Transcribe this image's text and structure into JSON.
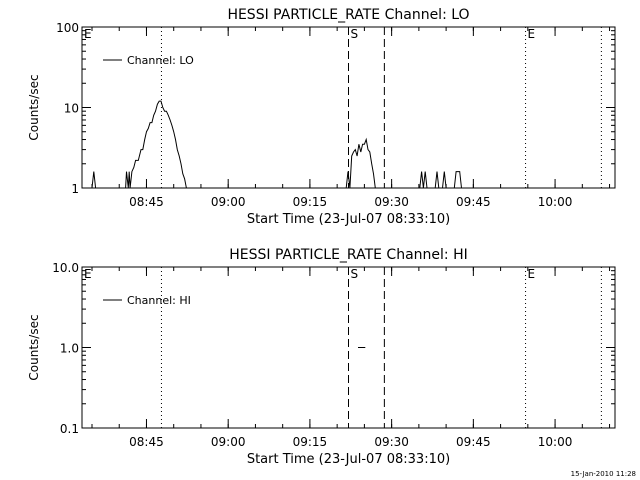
{
  "footer": "15-Jan-2010 11:28",
  "chart_data": [
    {
      "type": "line",
      "title": "HESSI PARTICLE_RATE Channel: LO",
      "xlabel": "Start Time (23-Jul-07 08:33:10)",
      "ylabel": "Counts/sec",
      "yscale": "log",
      "ylim": [
        1,
        100
      ],
      "xlim": [
        "08:33:10",
        "10:11:00"
      ],
      "xticks": [
        "08:45",
        "09:00",
        "09:15",
        "09:30",
        "09:45",
        "10:00"
      ],
      "yticks": [
        "1",
        "10",
        "100"
      ],
      "legend": "top-left",
      "grid": false,
      "series": [
        {
          "name": "Channel: LO",
          "points": [
            [
              "08:35:00",
              1
            ],
            [
              "08:35:20",
              1.6
            ],
            [
              "08:35:40",
              1
            ],
            [
              "08:41:10",
              1
            ],
            [
              "08:41:20",
              1.6
            ],
            [
              "08:41:40",
              1
            ],
            [
              "08:41:50",
              1.6
            ],
            [
              "08:42:00",
              1
            ],
            [
              "08:42:20",
              1.6
            ],
            [
              "08:42:40",
              1.8
            ],
            [
              "08:43:00",
              2.2
            ],
            [
              "08:43:30",
              2.2
            ],
            [
              "08:44:00",
              3
            ],
            [
              "08:44:20",
              3
            ],
            [
              "08:44:40",
              4
            ],
            [
              "08:45:00",
              5
            ],
            [
              "08:45:20",
              5.5
            ],
            [
              "08:45:40",
              6.5
            ],
            [
              "08:46:00",
              6.5
            ],
            [
              "08:46:20",
              8
            ],
            [
              "08:46:40",
              9
            ],
            [
              "08:47:00",
              11
            ],
            [
              "08:47:20",
              12
            ],
            [
              "08:47:40",
              12
            ],
            [
              "08:48:00",
              10
            ],
            [
              "08:48:20",
              9
            ],
            [
              "08:48:40",
              9
            ],
            [
              "08:49:00",
              8
            ],
            [
              "08:49:20",
              7
            ],
            [
              "08:49:40",
              6
            ],
            [
              "08:50:00",
              5
            ],
            [
              "08:50:20",
              4
            ],
            [
              "08:50:40",
              3
            ],
            [
              "08:51:00",
              2.5
            ],
            [
              "08:51:20",
              2
            ],
            [
              "08:51:40",
              1.5
            ],
            [
              "08:52:00",
              1.3
            ],
            [
              "08:52:20",
              1
            ],
            [
              "09:21:40",
              1
            ],
            [
              "09:22:00",
              1.6
            ],
            [
              "09:22:20",
              1
            ],
            [
              "09:22:40",
              2.5
            ],
            [
              "09:23:00",
              2.8
            ],
            [
              "09:23:20",
              3
            ],
            [
              "09:23:40",
              2.5
            ],
            [
              "09:24:00",
              3.5
            ],
            [
              "09:24:20",
              2.8
            ],
            [
              "09:24:40",
              3.5
            ],
            [
              "09:25:00",
              3.5
            ],
            [
              "09:25:20",
              4
            ],
            [
              "09:25:40",
              3
            ],
            [
              "09:26:00",
              2.8
            ],
            [
              "09:26:20",
              2
            ],
            [
              "09:26:40",
              1.5
            ],
            [
              "09:27:00",
              1
            ],
            [
              "09:35:10",
              1
            ],
            [
              "09:35:30",
              1.6
            ],
            [
              "09:35:50",
              1
            ],
            [
              "09:36:10",
              1.6
            ],
            [
              "09:36:30",
              1
            ],
            [
              "09:38:00",
              1
            ],
            [
              "09:38:20",
              1.6
            ],
            [
              "09:38:40",
              1
            ],
            [
              "09:39:20",
              1
            ],
            [
              "09:39:40",
              1.6
            ],
            [
              "09:40:00",
              1
            ],
            [
              "09:41:30",
              1
            ],
            [
              "09:41:50",
              1.6
            ],
            [
              "09:42:30",
              1.6
            ],
            [
              "09:42:50",
              1
            ]
          ]
        }
      ],
      "markers": [
        {
          "label": "E",
          "time": "08:33:10",
          "style": "dotted"
        },
        {
          "label": "",
          "time": "08:47:45",
          "style": "dotted"
        },
        {
          "label": "S",
          "time": "09:22:05",
          "style": "dashed"
        },
        {
          "label": "",
          "time": "09:28:40",
          "style": "dashed"
        },
        {
          "label": "E",
          "time": "09:54:35",
          "style": "dotted"
        },
        {
          "label": "",
          "time": "10:08:30",
          "style": "dotted"
        }
      ]
    },
    {
      "type": "line",
      "title": "HESSI PARTICLE_RATE Channel: HI",
      "xlabel": "Start Time (23-Jul-07 08:33:10)",
      "ylabel": "Counts/sec",
      "yscale": "log",
      "ylim": [
        0.1,
        10
      ],
      "xlim": [
        "08:33:10",
        "10:11:00"
      ],
      "xticks": [
        "08:45",
        "09:00",
        "09:15",
        "09:30",
        "09:45",
        "10:00"
      ],
      "yticks": [
        "0.1",
        "1.0",
        "10.0"
      ],
      "legend": "top-left",
      "grid": false,
      "series": [
        {
          "name": "Channel: HI",
          "points": [
            [
              "09:23:50",
              1
            ],
            [
              "09:25:10",
              1
            ]
          ]
        }
      ],
      "markers": [
        {
          "label": "E",
          "time": "08:33:10",
          "style": "dotted"
        },
        {
          "label": "",
          "time": "08:47:45",
          "style": "dotted"
        },
        {
          "label": "S",
          "time": "09:22:05",
          "style": "dashed"
        },
        {
          "label": "",
          "time": "09:28:40",
          "style": "dashed"
        },
        {
          "label": "E",
          "time": "09:54:35",
          "style": "dotted"
        },
        {
          "label": "",
          "time": "10:08:30",
          "style": "dotted"
        }
      ]
    }
  ]
}
